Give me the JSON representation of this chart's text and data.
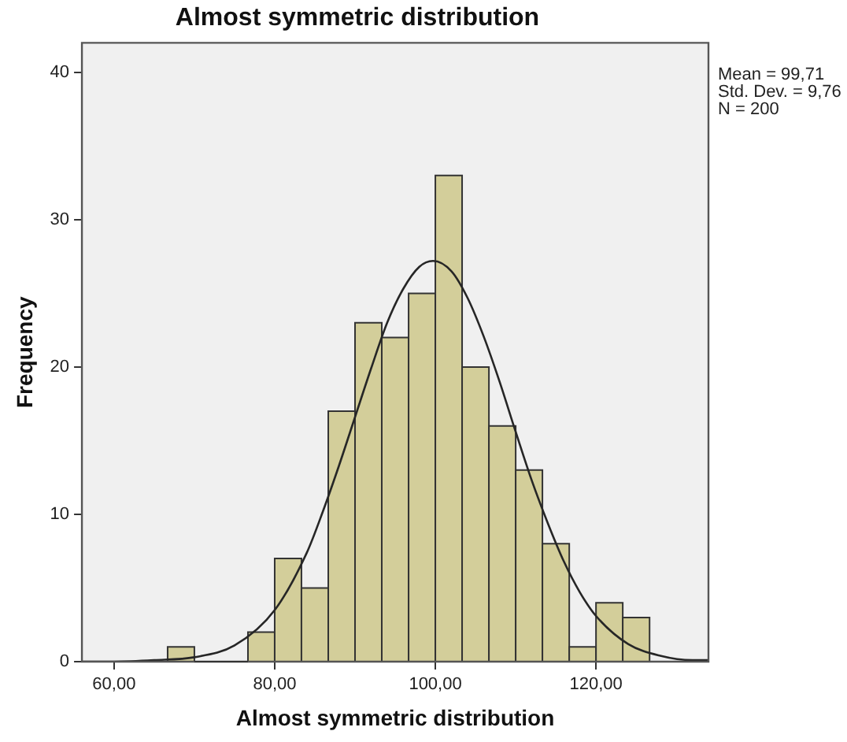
{
  "chart_data": {
    "type": "histogram",
    "title": "Almost symmetric distribution",
    "xlabel": "Almost symmetric distribution",
    "ylabel": "Frequency",
    "bins": [
      66.67,
      70,
      73.33,
      76.67,
      80,
      83.33,
      86.67,
      90,
      93.33,
      96.67,
      100,
      103.33,
      106.67,
      110,
      113.33,
      116.67,
      120,
      123.33,
      126.67
    ],
    "values": [
      1,
      0,
      0,
      2,
      7,
      5,
      17,
      23,
      22,
      25,
      33,
      20,
      16,
      13,
      8,
      1,
      4,
      3
    ],
    "color": "#d3ce9a",
    "series": [
      {
        "type": "line",
        "color": "#262626",
        "x": [
          56,
          60,
          65,
          70,
          75,
          80,
          84,
          86,
          88,
          90,
          92,
          94,
          96,
          98,
          99.71,
          102,
          104,
          106,
          108,
          110,
          112,
          114,
          116,
          118,
          120,
          124,
          128,
          132,
          134
        ],
        "values": [
          0,
          0,
          0.1,
          0.3,
          1.1,
          3.5,
          7.4,
          10.2,
          13.3,
          16.6,
          19.9,
          23,
          25.3,
          26.8,
          27.2,
          26.5,
          24.7,
          22.1,
          19,
          15.6,
          12.3,
          9.4,
          6.8,
          4.7,
          3.1,
          1.2,
          0.4,
          0.1,
          0.1
        ]
      }
    ],
    "xlim": [
      56,
      134
    ],
    "xticks": [
      {
        "value": 60,
        "label": "60,00"
      },
      {
        "value": 80,
        "label": "80,00"
      },
      {
        "value": 100,
        "label": "100,00"
      },
      {
        "value": 120,
        "label": "120,00"
      }
    ],
    "ylim": [
      0,
      42
    ],
    "yticks": [
      0,
      10,
      20,
      30,
      40
    ],
    "grid": false,
    "legend": false,
    "marker": "none",
    "annotations": [
      "Mean = 99,71",
      "Std. Dev. = 9,76",
      "N = 200"
    ]
  }
}
